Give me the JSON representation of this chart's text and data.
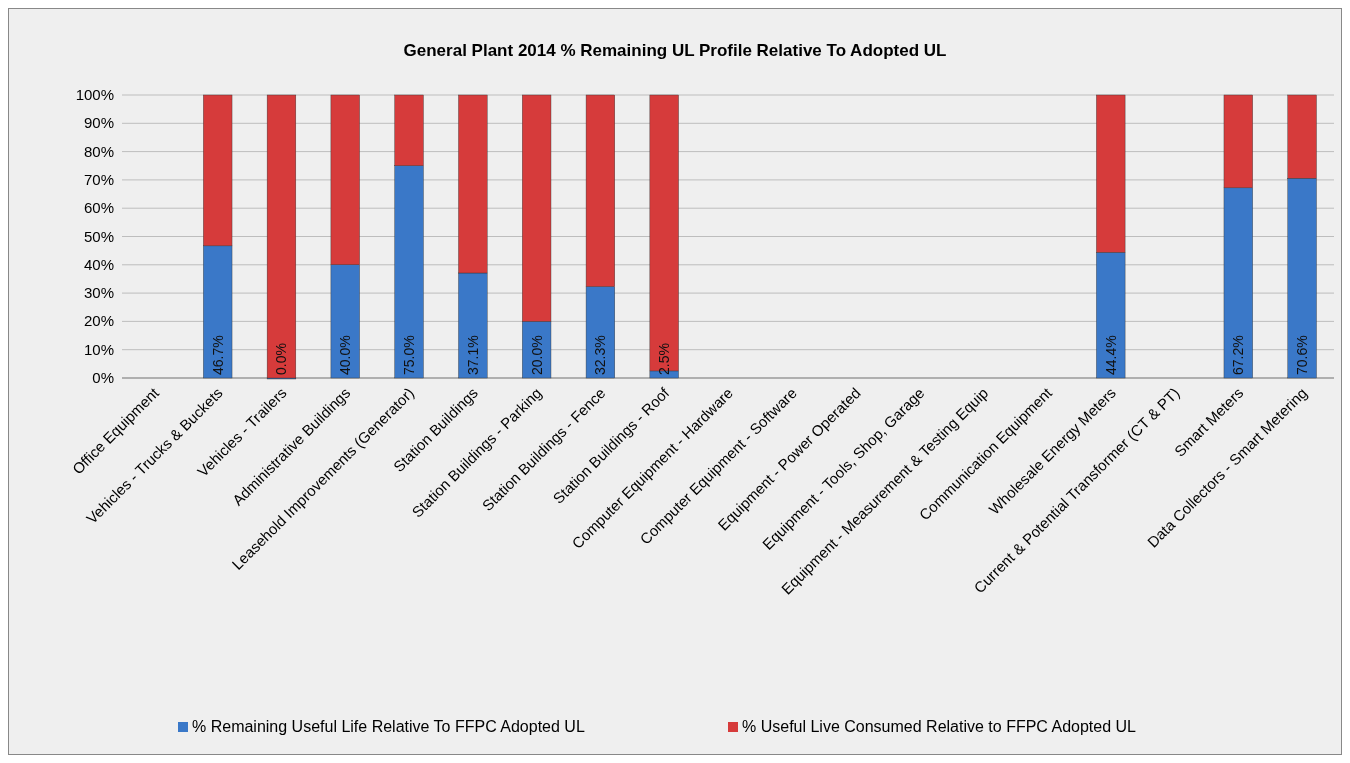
{
  "chart_data": {
    "type": "bar",
    "title": "General Plant 2014 % Remaining UL Profile Relative To Adopted UL",
    "stacked": true,
    "categories": [
      "Office Equipment",
      "Vehicles - Trucks & Buckets",
      "Vehicles - Trailers",
      "Administrative Buildings",
      "Leasehold Improvements (Generator)",
      "Station Buildings",
      "Station Buildings - Parking",
      "Station Buildings - Fence",
      "Station Buildings - Roof",
      "Computer Equipment - Hardware",
      "Computer Equipment - Software",
      "Equipment - Power Operated",
      "Equipment - Tools, Shop, Garage",
      "Equipment - Measurement & Testing Equip",
      "Communication Equipment",
      "Wholesale Energy Meters",
      "Current & Potential Transformer (CT & PT)",
      "Smart Meters",
      "Data Collectors - Smart Metering"
    ],
    "series": [
      {
        "name": "% Remaining Useful Life Relative To FFPC Adopted UL",
        "color": "#3a78c8",
        "values": [
          null,
          46.7,
          0.0,
          40.0,
          75.0,
          37.1,
          20.0,
          32.3,
          2.5,
          null,
          null,
          null,
          null,
          null,
          null,
          44.4,
          null,
          67.2,
          70.6
        ],
        "value_labels": [
          null,
          "46.7%",
          "0.0%",
          "40.0%",
          "75.0%",
          "37.1%",
          "20.0%",
          "32.3%",
          "2.5%",
          null,
          null,
          null,
          null,
          null,
          null,
          "44.4%",
          null,
          "67.2%",
          "70.6%"
        ]
      },
      {
        "name": "% Useful Live Consumed Relative to FFPC Adopted UL",
        "color": "#d63b3b",
        "values": [
          null,
          53.3,
          100.0,
          60.0,
          25.0,
          62.9,
          80.0,
          67.7,
          97.5,
          null,
          null,
          null,
          null,
          null,
          null,
          55.6,
          null,
          32.8,
          29.4
        ]
      }
    ],
    "ylim": [
      0,
      100
    ],
    "yticks": [
      {
        "value": 0,
        "label": "0%"
      },
      {
        "value": 10,
        "label": "10%"
      },
      {
        "value": 20,
        "label": "20%"
      },
      {
        "value": 30,
        "label": "30%"
      },
      {
        "value": 40,
        "label": "40%"
      },
      {
        "value": 50,
        "label": "50%"
      },
      {
        "value": 60,
        "label": "60%"
      },
      {
        "value": 70,
        "label": "70%"
      },
      {
        "value": 80,
        "label": "80%"
      },
      {
        "value": 90,
        "label": "90%"
      },
      {
        "value": 100,
        "label": "100%"
      }
    ],
    "grid": "y",
    "legend": "bottom"
  }
}
